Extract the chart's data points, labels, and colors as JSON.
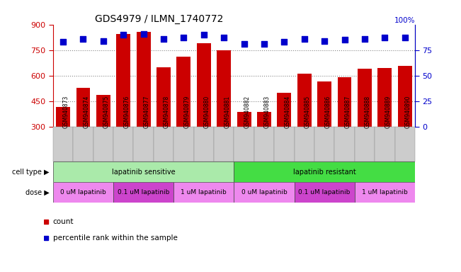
{
  "title": "GDS4979 / ILMN_1740772",
  "samples": [
    "GSM940873",
    "GSM940874",
    "GSM940875",
    "GSM940876",
    "GSM940877",
    "GSM940878",
    "GSM940879",
    "GSM940880",
    "GSM940881",
    "GSM940882",
    "GSM940883",
    "GSM940884",
    "GSM940885",
    "GSM940886",
    "GSM940887",
    "GSM940888",
    "GSM940889",
    "GSM940890"
  ],
  "counts": [
    415,
    527,
    487,
    845,
    855,
    647,
    710,
    790,
    748,
    385,
    385,
    498,
    610,
    565,
    588,
    640,
    645,
    658
  ],
  "percentile_ranks": [
    83,
    86,
    84,
    90,
    91,
    86,
    87,
    90,
    87,
    81,
    81,
    83,
    86,
    84,
    85,
    86,
    87,
    87
  ],
  "ylim_left": [
    300,
    900
  ],
  "ylim_right": [
    0,
    100
  ],
  "yticks_left": [
    300,
    450,
    600,
    750,
    900
  ],
  "yticks_right": [
    0,
    25,
    50,
    75
  ],
  "bar_color": "#cc0000",
  "dot_color": "#0000cc",
  "cell_type_groups": [
    {
      "label": "lapatinib sensitive",
      "start": 0,
      "end": 9,
      "color": "#aaeaaa"
    },
    {
      "label": "lapatinib resistant",
      "start": 9,
      "end": 18,
      "color": "#44dd44"
    }
  ],
  "dose_groups": [
    {
      "label": "0 uM lapatinib",
      "start": 0,
      "end": 3,
      "color": "#ee88ee"
    },
    {
      "label": "0.1 uM lapatinib",
      "start": 3,
      "end": 6,
      "color": "#cc44cc"
    },
    {
      "label": "1 uM lapatinib",
      "start": 6,
      "end": 9,
      "color": "#ee88ee"
    },
    {
      "label": "0 uM lapatinib",
      "start": 9,
      "end": 12,
      "color": "#ee88ee"
    },
    {
      "label": "0.1 uM lapatinib",
      "start": 12,
      "end": 15,
      "color": "#cc44cc"
    },
    {
      "label": "1 uM lapatinib",
      "start": 15,
      "end": 18,
      "color": "#ee88ee"
    }
  ],
  "cell_type_label": "cell type",
  "dose_label": "dose",
  "legend_count_label": "count",
  "legend_percentile_label": "percentile rank within the sample",
  "tick_label_color": "#cc0000",
  "right_tick_color": "#0000cc",
  "grid_linestyle": "dotted",
  "grid_color": "#888888",
  "bar_width": 0.7,
  "dot_size": 35,
  "xticklabel_bg": "#cccccc",
  "xticklabel_fontsize": 5.5,
  "row_label_fontsize": 7,
  "row_content_fontsize": 7,
  "title_fontsize": 10
}
